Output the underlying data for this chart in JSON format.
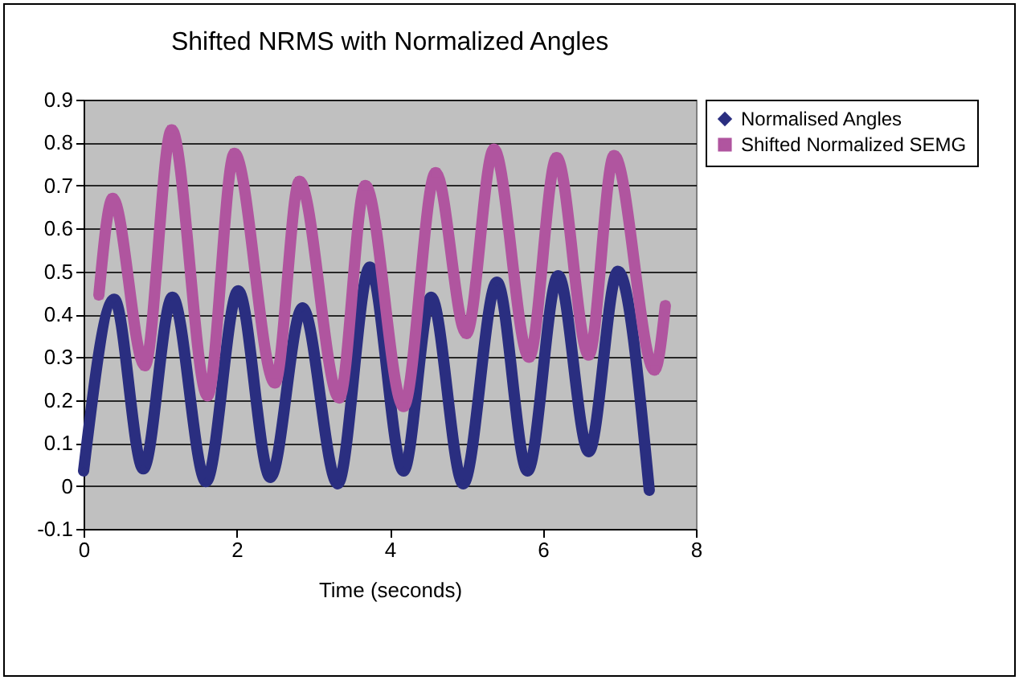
{
  "chart_data": {
    "type": "line",
    "title": "Shifted NRMS with Normalized Angles",
    "xlabel": "Time (seconds)",
    "xlim": [
      0,
      8
    ],
    "xticks": [
      0,
      2,
      4,
      6,
      8
    ],
    "ylim": [
      -0.1,
      0.9
    ],
    "yticks": [
      -0.1,
      0,
      0.1,
      0.2,
      0.3,
      0.4,
      0.5,
      0.6,
      0.7,
      0.8,
      0.9
    ],
    "grid": "y",
    "legend": "right",
    "series": [
      {
        "name": "Normalised Angles",
        "color": "#2a2e80",
        "marker": "diamond",
        "x": [
          0,
          0.4,
          0.78,
          1.16,
          1.6,
          2.02,
          2.44,
          2.86,
          3.32,
          3.74,
          4.18,
          4.54,
          4.96,
          5.4,
          5.8,
          6.2,
          6.6,
          6.98,
          7.39
        ],
        "values": [
          0.035,
          0.435,
          0.04,
          0.44,
          0.01,
          0.455,
          0.02,
          0.415,
          0.005,
          0.51,
          0.035,
          0.44,
          0.005,
          0.475,
          0.035,
          0.49,
          0.08,
          0.5,
          -0.01
        ]
      },
      {
        "name": "Shifted Normalized SEMG",
        "color": "#b0559f",
        "marker": "square",
        "x": [
          0.2,
          0.38,
          0.8,
          1.15,
          1.62,
          1.97,
          2.5,
          2.82,
          3.34,
          3.68,
          4.18,
          4.6,
          5.0,
          5.36,
          5.82,
          6.18,
          6.6,
          6.93,
          7.46,
          7.6
        ],
        "values": [
          0.445,
          0.67,
          0.28,
          0.83,
          0.21,
          0.775,
          0.24,
          0.71,
          0.205,
          0.7,
          0.185,
          0.73,
          0.355,
          0.785,
          0.3,
          0.765,
          0.305,
          0.77,
          0.27,
          0.42
        ]
      }
    ]
  }
}
